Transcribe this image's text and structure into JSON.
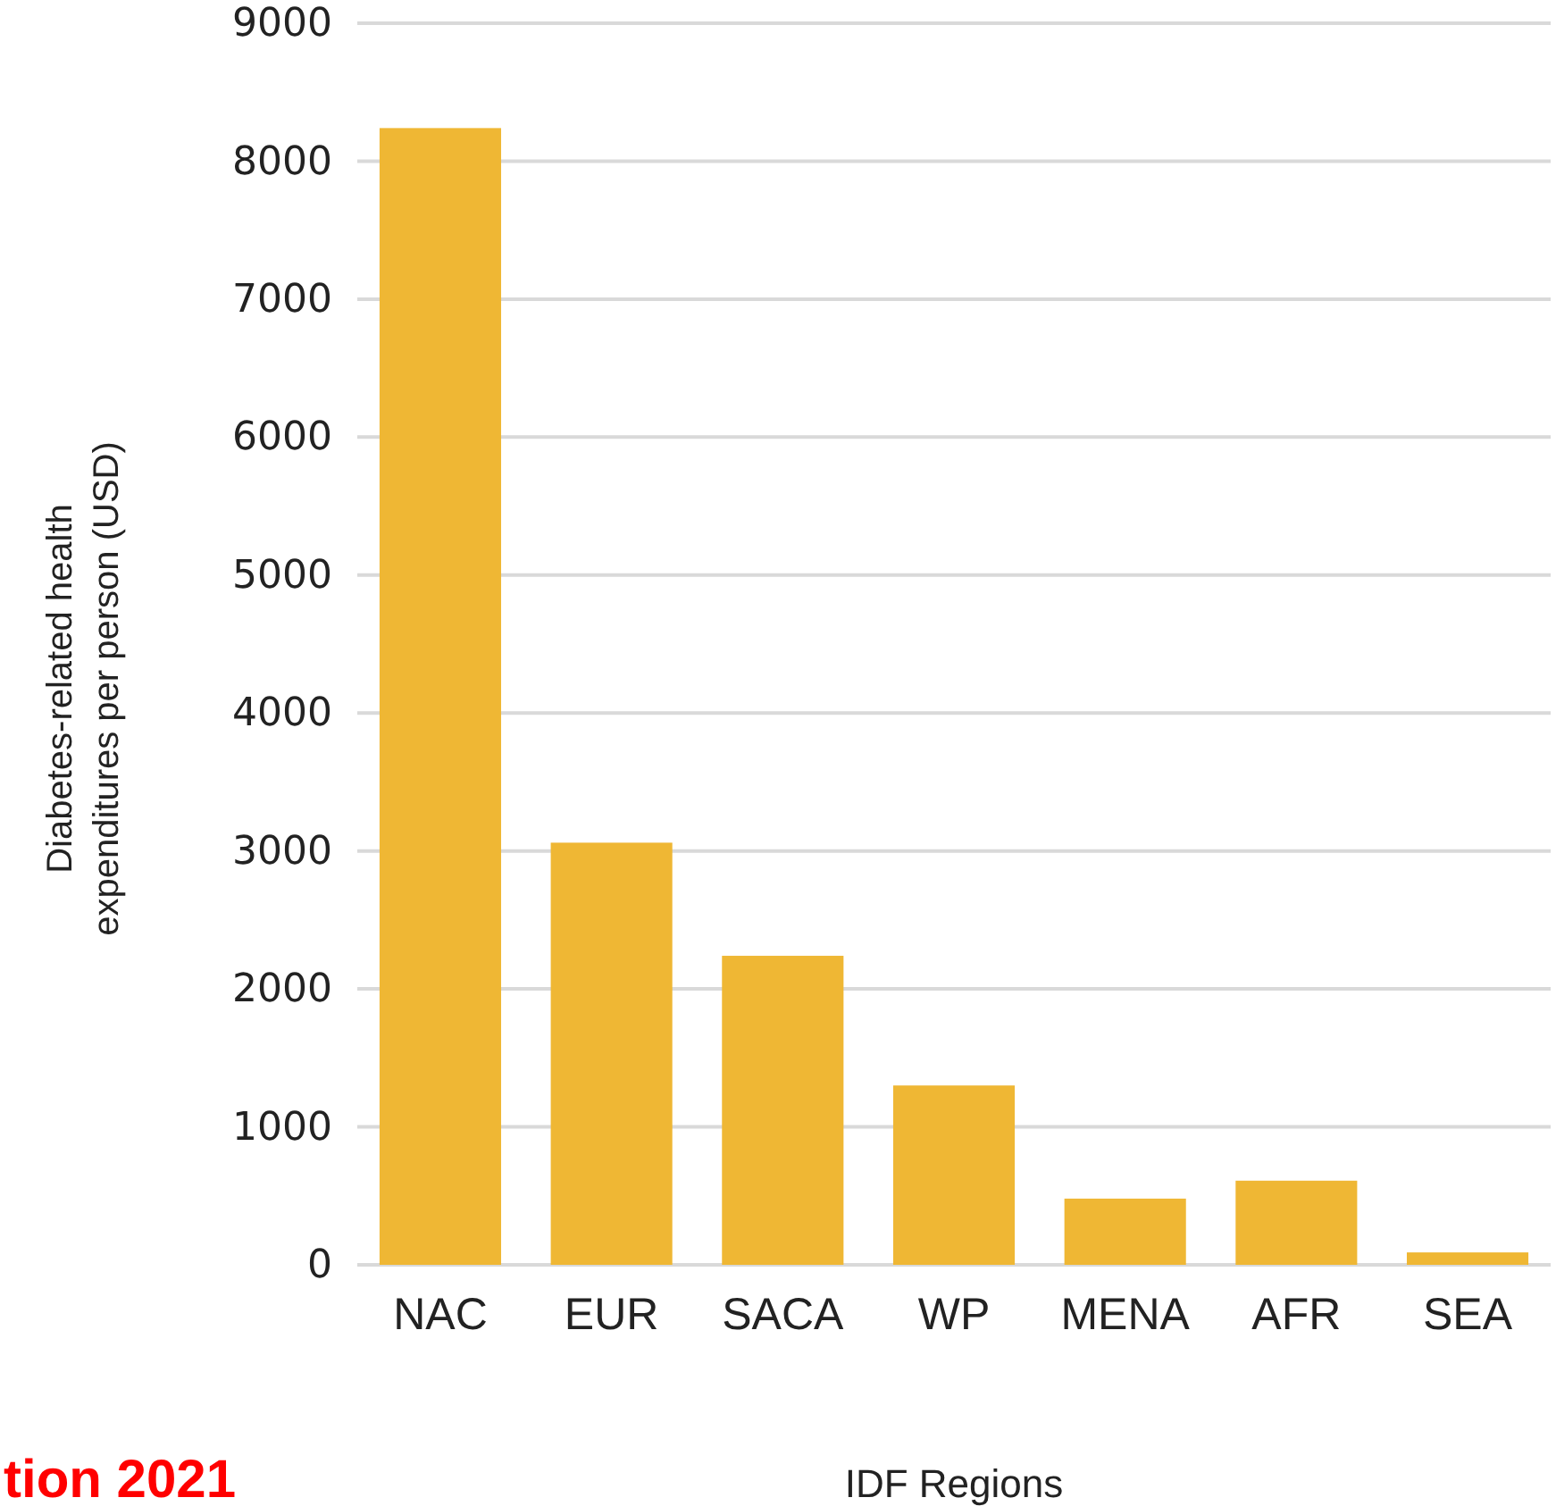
{
  "chart_data": {
    "type": "bar",
    "categories": [
      "NAC",
      "EUR",
      "SACA",
      "WP",
      "MENA",
      "AFR",
      "SEA"
    ],
    "values": [
      8240,
      3060,
      2240,
      1300,
      480,
      610,
      90
    ],
    "color": "#efb734",
    "ylim": [
      0,
      9000
    ],
    "yticks": [
      0,
      1000,
      2000,
      3000,
      4000,
      5000,
      6000,
      7000,
      8000,
      9000
    ],
    "grid": "y",
    "xlabel": "IDF Regions",
    "ylabel": "Diabetes-related health\nexpenditures per person (USD)",
    "annotations": [
      "tion 2021"
    ]
  }
}
